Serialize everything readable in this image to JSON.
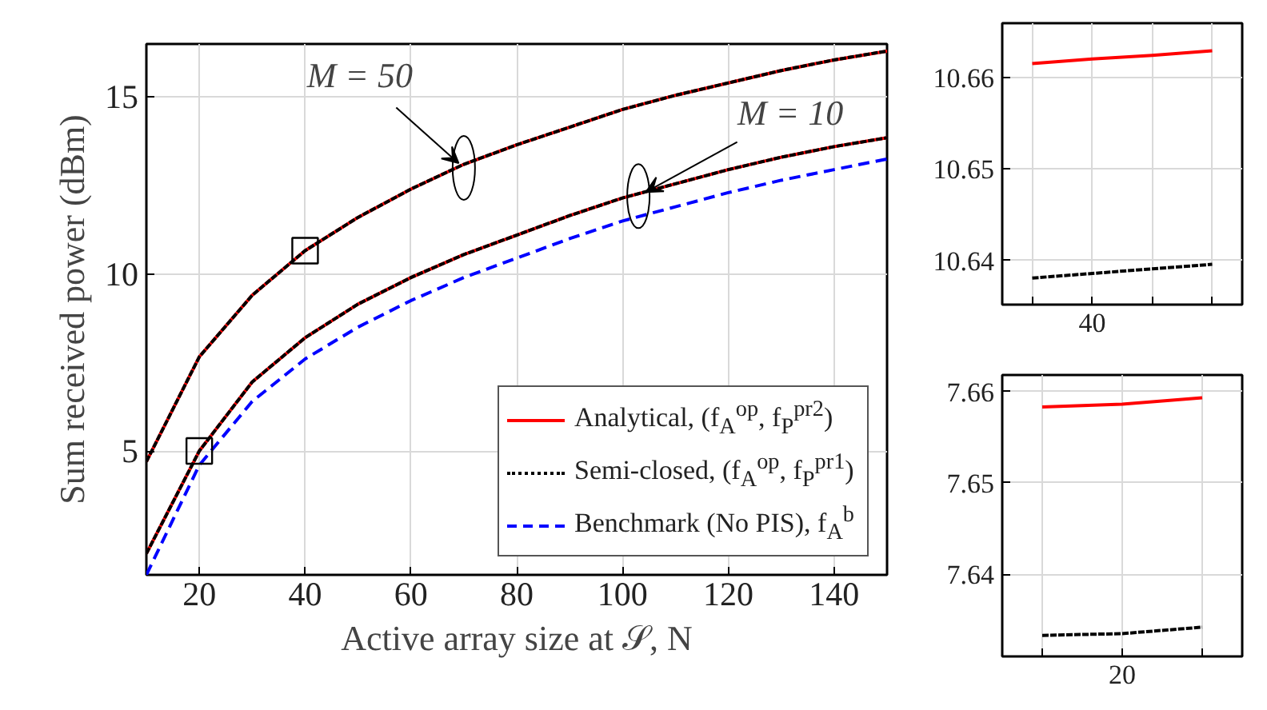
{
  "chart_data": [
    {
      "type": "line",
      "xlabel": "Active array size at 𝒮, N",
      "ylabel": "Sum received power (dBm)",
      "x": [
        10,
        20,
        30,
        40,
        50,
        60,
        70,
        80,
        90,
        100,
        110,
        120,
        130,
        140,
        150
      ],
      "series": [
        {
          "name": "Analytical, (f$_{A}$$^{op}$, f$_{P}$$^{pr2}$)",
          "color": "#ff0000",
          "line_style": "solid",
          "values": [
            4.7,
            7.66,
            9.4,
            10.66,
            11.6,
            12.4,
            13.1,
            13.65,
            14.15,
            14.65,
            15.05,
            15.4,
            15.75,
            16.05,
            16.3
          ]
        },
        {
          "name": "Semi-closed, (f$_{A}$$^{op}$, f$_{P}$$^{pr1}$)",
          "color": "#000000",
          "line_style": "dotted",
          "values": [
            4.7,
            7.66,
            9.4,
            10.66,
            11.6,
            12.4,
            13.1,
            13.65,
            14.15,
            14.65,
            15.05,
            15.4,
            15.75,
            16.05,
            16.3
          ]
        },
        {
          "color": "#ff0000",
          "line_style": "solid",
          "values": [
            2.1,
            5.0,
            6.95,
            8.2,
            9.15,
            9.9,
            10.55,
            11.1,
            11.65,
            12.15,
            12.55,
            12.95,
            13.3,
            13.6,
            13.85
          ]
        },
        {
          "color": "#000000",
          "line_style": "dotted",
          "values": [
            2.1,
            5.0,
            6.95,
            8.2,
            9.15,
            9.9,
            10.55,
            11.1,
            11.65,
            12.15,
            12.55,
            12.95,
            13.3,
            13.6,
            13.85
          ]
        },
        {
          "name": "Benchmark (No PIS), f$_{A}$$^{b}$",
          "color": "#0000ff",
          "line_style": "dashed",
          "values": [
            1.5,
            4.6,
            6.4,
            7.6,
            8.5,
            9.25,
            9.9,
            10.45,
            11.0,
            11.5,
            11.9,
            12.3,
            12.65,
            12.95,
            13.25
          ]
        }
      ],
      "xlim": [
        10,
        150
      ],
      "ylim": [
        1.5,
        16.5
      ],
      "xticks": [
        20,
        40,
        60,
        80,
        100,
        120,
        140
      ],
      "yticks": [
        5,
        10,
        15
      ],
      "grid": true,
      "legend": "bottom right",
      "annotations": [
        {
          "text": "M = 50",
          "x": 70,
          "y": 13.0
        },
        {
          "text": "M = 10",
          "x": 103,
          "y": 12.2
        }
      ]
    },
    {
      "type": "line",
      "categories": [
        null,
        "40",
        null,
        null
      ],
      "series": [
        {
          "color": "#ff0000",
          "line_style": "solid",
          "values": [
            10.6615,
            10.662,
            10.6624,
            10.6629
          ]
        },
        {
          "color": "#000000",
          "line_style": "dotted",
          "values": [
            10.6381,
            10.6386,
            10.6391,
            10.6396
          ]
        }
      ],
      "ylim": [
        10.6352,
        10.6659
      ],
      "yticks": [
        10.64,
        10.65,
        10.66
      ],
      "grid": true
    },
    {
      "type": "line",
      "categories": [
        null,
        "20",
        null
      ],
      "series": [
        {
          "color": "#ff0000",
          "line_style": "solid",
          "values": [
            7.6583,
            7.6586,
            7.6593
          ]
        },
        {
          "color": "#000000",
          "line_style": "dotted",
          "values": [
            7.6333,
            7.6335,
            7.6342
          ]
        }
      ],
      "ylim": [
        7.631,
        7.6618
      ],
      "yticks": [
        7.64,
        7.65,
        7.66
      ],
      "grid": true
    }
  ]
}
